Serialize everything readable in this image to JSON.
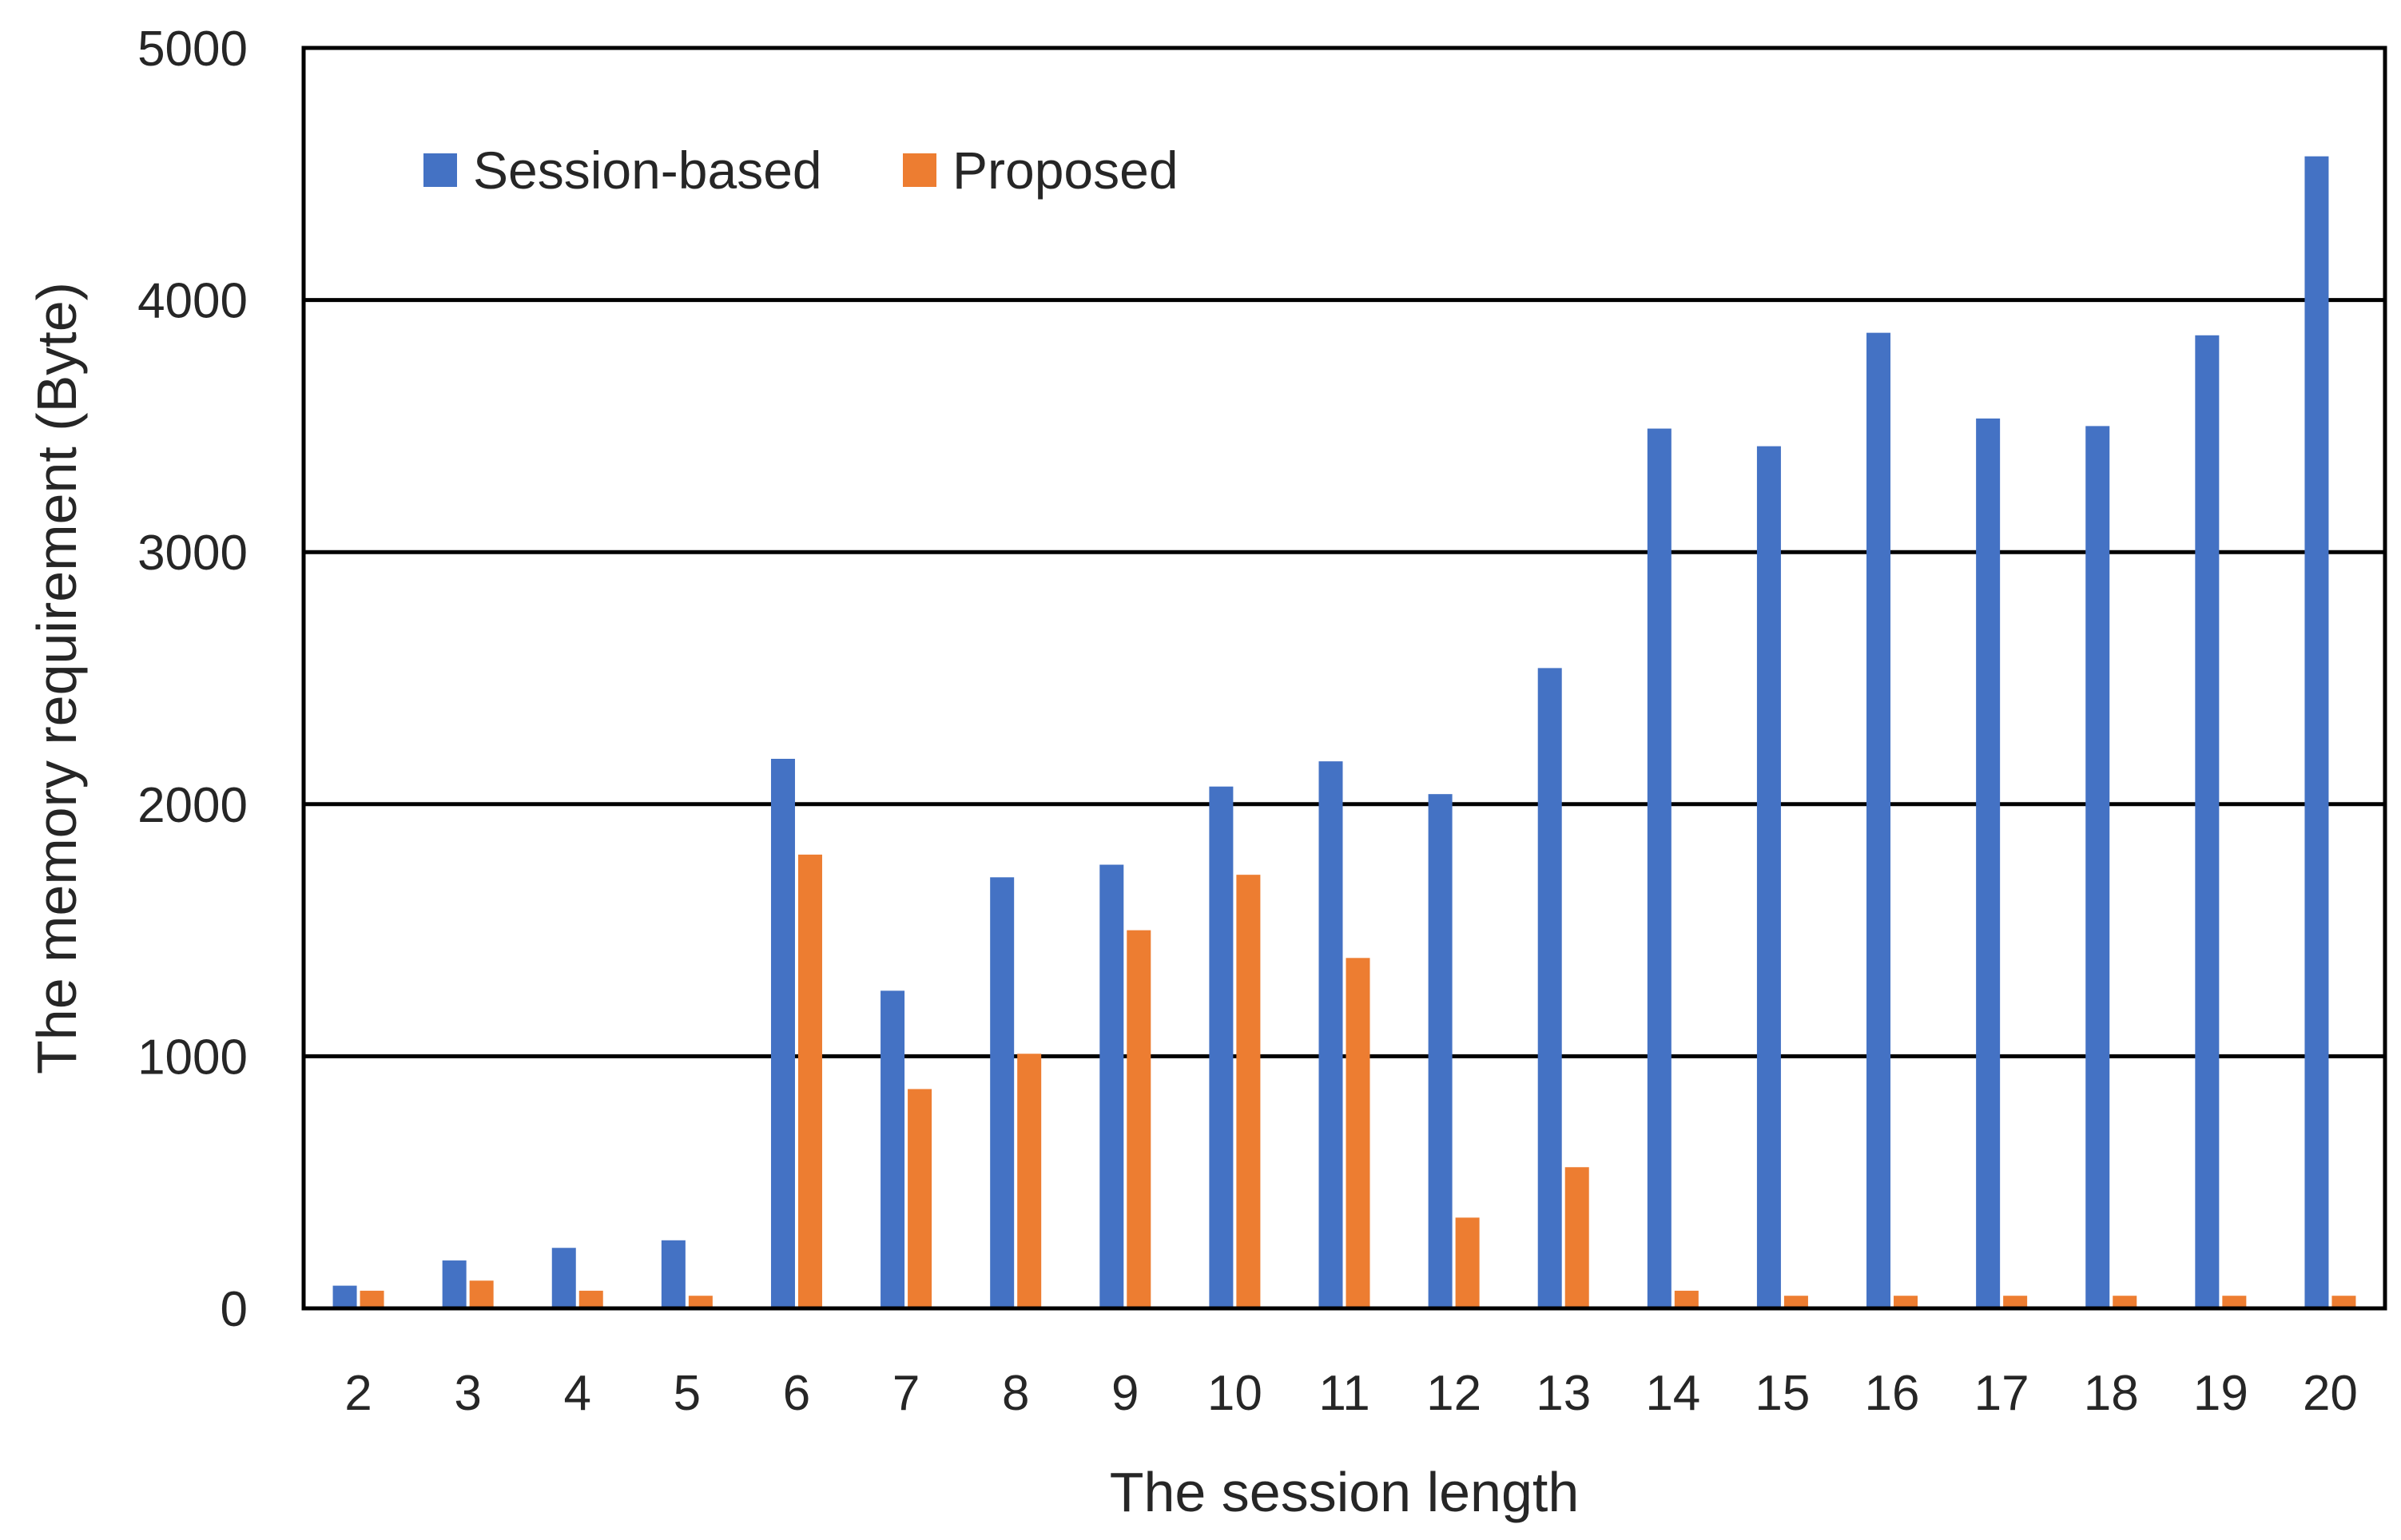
{
  "chart_data": {
    "type": "bar",
    "title": "",
    "xlabel": "The session length",
    "ylabel": "The memory requirement (Byte)",
    "ylim": [
      0,
      5000
    ],
    "yticks": [
      "0",
      "1000",
      "2000",
      "3000",
      "4000",
      "5000"
    ],
    "categories": [
      "2",
      "3",
      "4",
      "5",
      "6",
      "7",
      "8",
      "9",
      "10",
      "11",
      "12",
      "13",
      "14",
      "15",
      "16",
      "17",
      "18",
      "19",
      "20"
    ],
    "series": [
      {
        "name": "Session-based",
        "color": "#4472C4",
        "values": [
          90,
          190,
          240,
          270,
          2180,
          1260,
          1710,
          1760,
          2070,
          2170,
          2040,
          2540,
          3490,
          3420,
          3870,
          3530,
          3500,
          3860,
          4570
        ]
      },
      {
        "name": "Proposed",
        "color": "#ED7D31",
        "values": [
          70,
          110,
          70,
          50,
          1800,
          870,
          1010,
          1500,
          1720,
          1390,
          360,
          560,
          70,
          50,
          50,
          50,
          50,
          50,
          50
        ]
      }
    ],
    "grid": true,
    "legend_position": "top-left"
  }
}
